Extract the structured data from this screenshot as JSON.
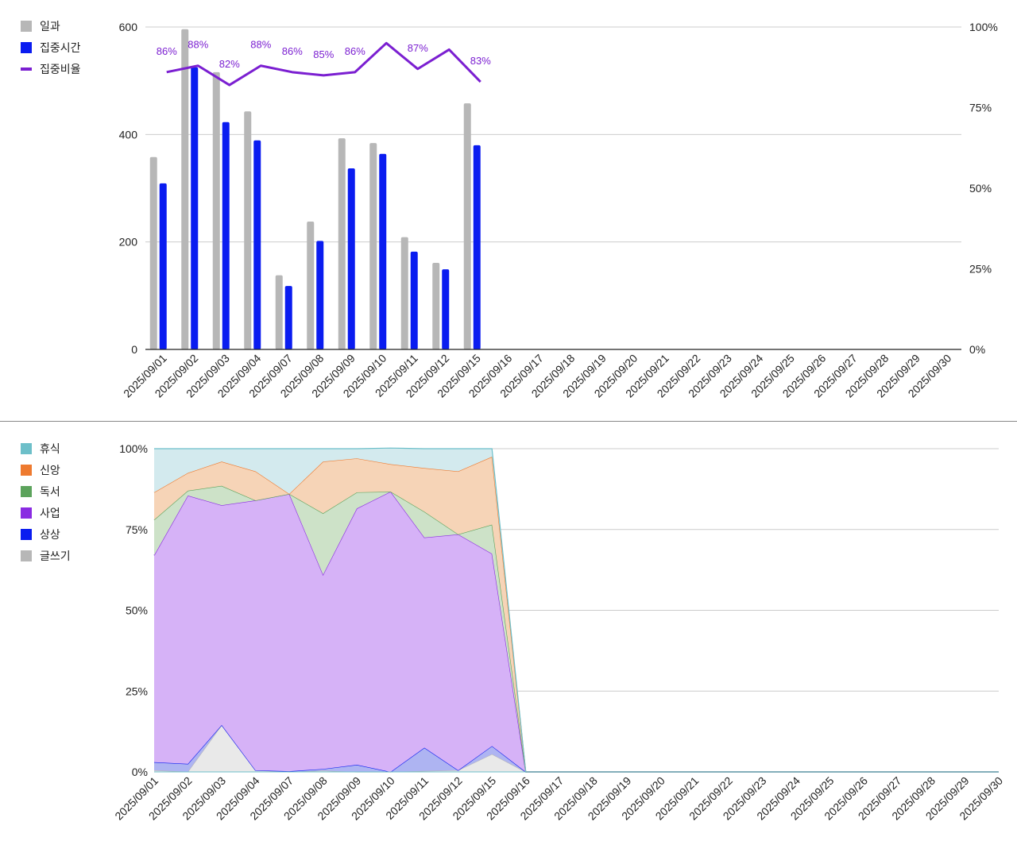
{
  "chart_data": [
    {
      "type": "bar+line",
      "categories": [
        "2025/09/01",
        "2025/09/02",
        "2025/09/03",
        "2025/09/04",
        "2025/09/07",
        "2025/09/08",
        "2025/09/09",
        "2025/09/10",
        "2025/09/11",
        "2025/09/12",
        "2025/09/15",
        "2025/09/16",
        "2025/09/17",
        "2025/09/18",
        "2025/09/19",
        "2025/09/20",
        "2025/09/21",
        "2025/09/22",
        "2025/09/23",
        "2025/09/24",
        "2025/09/25",
        "2025/09/26",
        "2025/09/27",
        "2025/09/28",
        "2025/09/29",
        "2025/09/30"
      ],
      "series": [
        {
          "name": "일과",
          "type": "bar",
          "axis": "left",
          "color": "#b7b7b7",
          "values": [
            358,
            596,
            516,
            443,
            138,
            238,
            393,
            384,
            209,
            161,
            458,
            null,
            null,
            null,
            null,
            null,
            null,
            null,
            null,
            null,
            null,
            null,
            null,
            null,
            null,
            null
          ]
        },
        {
          "name": "집중시간",
          "type": "bar",
          "axis": "left",
          "color": "#0a1cf0",
          "values": [
            309,
            525,
            423,
            389,
            118,
            202,
            337,
            364,
            182,
            149,
            380,
            null,
            null,
            null,
            null,
            null,
            null,
            null,
            null,
            null,
            null,
            null,
            null,
            null,
            null,
            null
          ]
        },
        {
          "name": "집중비율",
          "type": "line",
          "axis": "right",
          "color": "#7b1fd1",
          "values": [
            86,
            88,
            82,
            88,
            86,
            85,
            86,
            95,
            87,
            93,
            83,
            null,
            null,
            null,
            null,
            null,
            null,
            null,
            null,
            null,
            null,
            null,
            null,
            null,
            null,
            null
          ]
        }
      ],
      "data_labels": [
        "86%",
        "88%",
        "82%",
        "88%",
        "86%",
        "85%",
        "86%",
        "",
        "87%",
        "",
        "83%"
      ],
      "ylim_left": [
        0,
        600
      ],
      "yticks_left": [
        "0",
        "200",
        "400",
        "600"
      ],
      "ylim_right": [
        0,
        100
      ],
      "yticks_right": [
        "0%",
        "25%",
        "50%",
        "75%",
        "100%"
      ],
      "legend_position": "top-left",
      "grid": true
    },
    {
      "type": "area",
      "stacked": "percent",
      "categories": [
        "2025/09/01",
        "2025/09/02",
        "2025/09/03",
        "2025/09/04",
        "2025/09/07",
        "2025/09/08",
        "2025/09/09",
        "2025/09/10",
        "2025/09/11",
        "2025/09/12",
        "2025/09/15",
        "2025/09/16",
        "2025/09/17",
        "2025/09/18",
        "2025/09/19",
        "2025/09/20",
        "2025/09/21",
        "2025/09/22",
        "2025/09/23",
        "2025/09/24",
        "2025/09/25",
        "2025/09/26",
        "2025/09/27",
        "2025/09/28",
        "2025/09/29",
        "2025/09/30"
      ],
      "series": [
        {
          "name": "휴식",
          "color": "#6dbfc9",
          "fill": "#d3eaee",
          "values": [
            13.5,
            7.5,
            4,
            7,
            14,
            4,
            3,
            5,
            6,
            7,
            2.5,
            0,
            0,
            0,
            0,
            0,
            0,
            0,
            0,
            0,
            0,
            0,
            0,
            0,
            0,
            0
          ]
        },
        {
          "name": "신앙",
          "color": "#ee7a2f",
          "fill": "#f6d4b7",
          "values": [
            8.5,
            5.5,
            7.5,
            9,
            0,
            16,
            10.5,
            8.5,
            13.5,
            19.5,
            21,
            0,
            0,
            0,
            0,
            0,
            0,
            0,
            0,
            0,
            0,
            0,
            0,
            0,
            0,
            0
          ]
        },
        {
          "name": "독서",
          "color": "#5ca35c",
          "fill": "#cde2c8",
          "values": [
            11,
            1.5,
            6,
            0,
            0,
            19,
            5,
            0,
            8,
            0,
            9,
            0,
            0,
            0,
            0,
            0,
            0,
            0,
            0,
            0,
            0,
            0,
            0,
            0,
            0,
            0
          ]
        },
        {
          "name": "사업",
          "color": "#8a2be2",
          "fill": "#d6b2f7",
          "values": [
            64,
            83,
            68,
            83.5,
            85.8,
            60.1,
            79.3,
            86.7,
            65,
            73,
            59.5,
            0,
            0,
            0,
            0,
            0,
            0,
            0,
            0,
            0,
            0,
            0,
            0,
            0,
            0,
            0
          ]
        },
        {
          "name": "상상",
          "color": "#0a1cf0",
          "fill": "#aeb4f2",
          "values": [
            2.5,
            2.4,
            0,
            0,
            0.2,
            0.5,
            2.2,
            0,
            7.2,
            0,
            2.5,
            0,
            0,
            0,
            0,
            0,
            0,
            0,
            0,
            0,
            0,
            0,
            0,
            0,
            0,
            0
          ]
        },
        {
          "name": "글쓰기",
          "color": "#b7b7b7",
          "fill": "#e9e9e9",
          "values": [
            0.5,
            0.1,
            14.5,
            0.5,
            0,
            0.4,
            0,
            0,
            0.3,
            0.5,
            5.5,
            0,
            0,
            0,
            0,
            0,
            0,
            0,
            0,
            0,
            0,
            0,
            0,
            0,
            0,
            0
          ]
        }
      ],
      "ylim": [
        0,
        100
      ],
      "yticks": [
        "0%",
        "25%",
        "50%",
        "75%",
        "100%"
      ],
      "legend_position": "top-left",
      "grid": true
    }
  ]
}
